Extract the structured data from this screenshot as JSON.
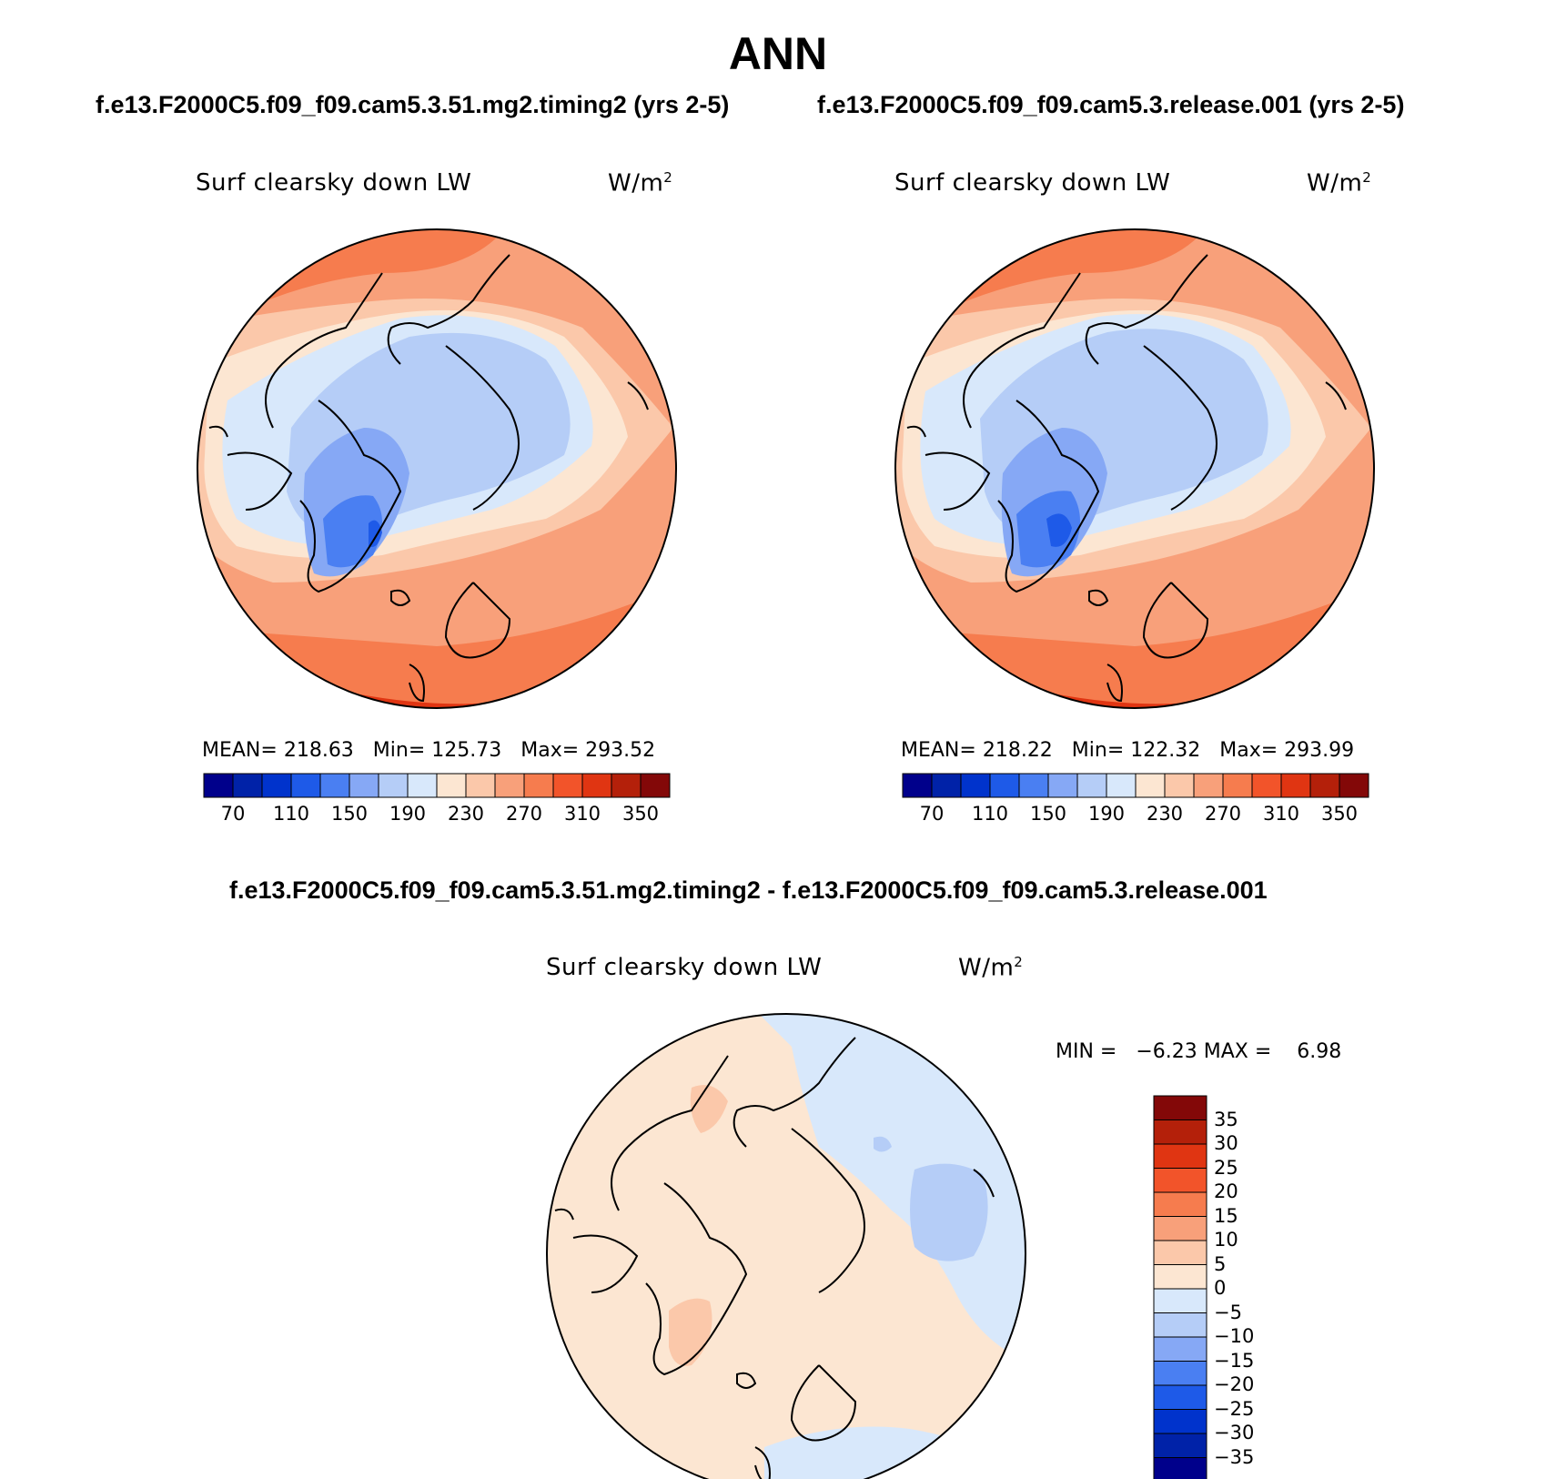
{
  "title": "ANN",
  "panels": [
    {
      "case_title": "f.e13.F2000C5.f09_f09.cam5.3.51.mg2.timing2 (yrs 2-5)",
      "variable": "Surf clearsky down LW",
      "units": "W/m",
      "units_sup": "2",
      "stats": {
        "mean_label": "MEAN=",
        "mean": "218.63",
        "min_label": "Min=",
        "min": "125.73",
        "max_label": "Max=",
        "max": "293.52"
      }
    },
    {
      "case_title": "f.e13.F2000C5.f09_f09.cam5.3.release.001 (yrs 2-5)",
      "variable": "Surf clearsky down LW",
      "units": "W/m",
      "units_sup": "2",
      "stats": {
        "mean_label": "MEAN=",
        "mean": "218.22",
        "min_label": "Min=",
        "min": "122.32",
        "max_label": "Max=",
        "max": "293.99"
      }
    },
    {
      "case_title": "f.e13.F2000C5.f09_f09.cam5.3.51.mg2.timing2 - f.e13.F2000C5.f09_f09.cam5.3.release.001",
      "variable": "Surf clearsky down LW",
      "units": "W/m",
      "units_sup": "2",
      "stats": {
        "min_label": "MIN =",
        "min": "−6.23",
        "max_label": "MAX =",
        "max": "6.98"
      }
    }
  ],
  "colorbar_abs": {
    "colors": [
      "#00008b",
      "#0022a8",
      "#0033cc",
      "#1e5ae8",
      "#4a7ff2",
      "#86a8f5",
      "#b5cdf7",
      "#d8e8fb",
      "#fce6d2",
      "#fbc8aa",
      "#f8a07a",
      "#f67c4e",
      "#f2542a",
      "#e03512",
      "#b4200a",
      "#830808"
    ],
    "tick_labels": [
      "70",
      "110",
      "150",
      "190",
      "230",
      "270",
      "310",
      "350"
    ]
  },
  "colorbar_diff": {
    "colors": [
      "#830808",
      "#b4200a",
      "#e03512",
      "#f2542a",
      "#f67c4e",
      "#f8a07a",
      "#fbc8aa",
      "#fce6d2",
      "#d8e8fb",
      "#b5cdf7",
      "#86a8f5",
      "#4a7ff2",
      "#1e5ae8",
      "#0033cc",
      "#0022a8",
      "#00008b"
    ],
    "tick_labels": [
      "35",
      "30",
      "25",
      "20",
      "15",
      "10",
      "5",
      "0",
      "−5",
      "−10",
      "−15",
      "−20",
      "−25",
      "−30",
      "−35"
    ]
  }
}
